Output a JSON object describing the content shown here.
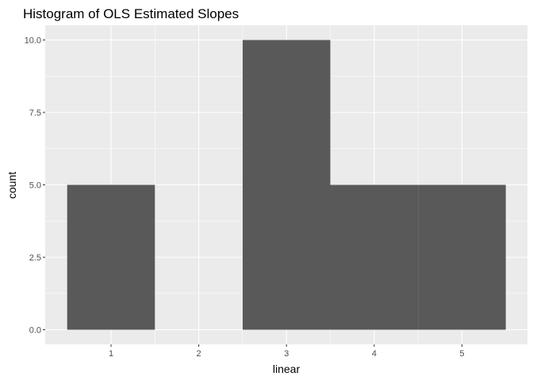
{
  "chart_data": {
    "type": "bar",
    "title": "Histogram of OLS Estimated Slopes",
    "xlabel": "linear",
    "ylabel": "count",
    "categories": [
      "1",
      "2",
      "3",
      "4",
      "5"
    ],
    "bins": [
      {
        "x": 1,
        "count": 5
      },
      {
        "x": 2,
        "count": 0
      },
      {
        "x": 3,
        "count": 10
      },
      {
        "x": 4,
        "count": 5
      },
      {
        "x": 5,
        "count": 5
      }
    ],
    "bin_width": 1,
    "xlim": [
      0.5,
      5.5
    ],
    "ylim": [
      0,
      10
    ],
    "y_ticks": [
      "0.0",
      "2.5",
      "5.0",
      "7.5",
      "10.0"
    ],
    "x_ticks": [
      "1",
      "2",
      "3",
      "4",
      "5"
    ],
    "grid": true,
    "colors": {
      "panel_background": "#ebebeb",
      "grid_major": "#ffffff",
      "bar_fill": "#595959",
      "tick_color": "#333333"
    }
  }
}
